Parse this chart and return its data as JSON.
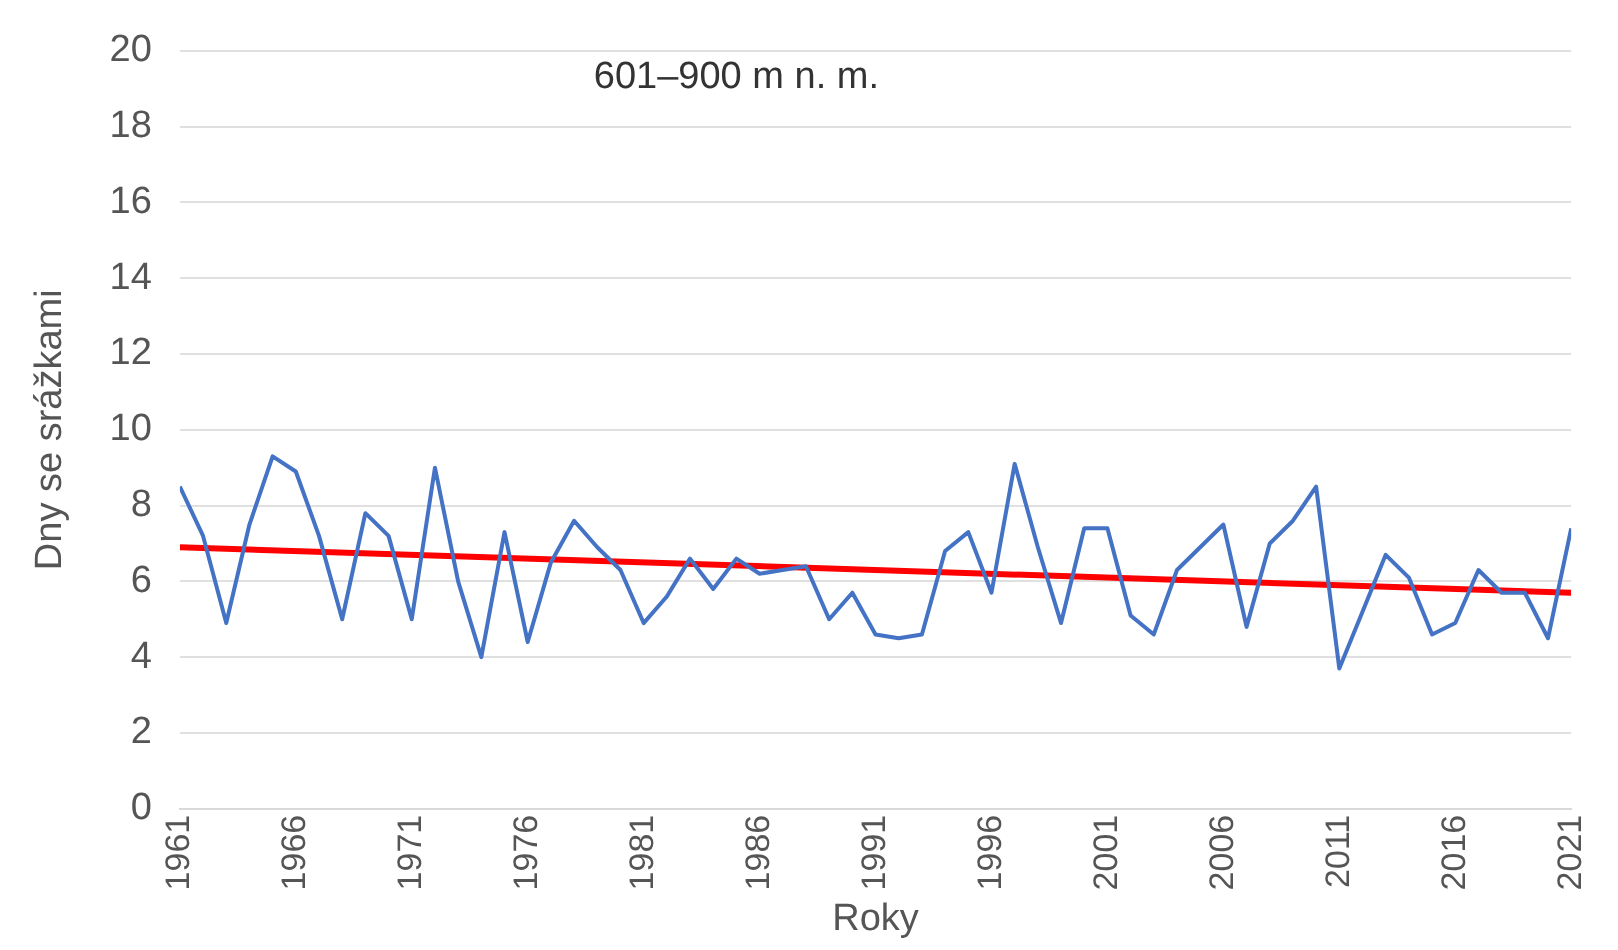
{
  "chart_data": {
    "type": "line",
    "xlabel": "Roky",
    "ylabel": "Dny se srážkami",
    "annotations": [
      "601–900 m n. m."
    ],
    "x": [
      1961,
      1962,
      1963,
      1964,
      1965,
      1966,
      1967,
      1968,
      1969,
      1970,
      1971,
      1972,
      1973,
      1974,
      1975,
      1976,
      1977,
      1978,
      1979,
      1980,
      1981,
      1982,
      1983,
      1984,
      1985,
      1986,
      1987,
      1988,
      1989,
      1990,
      1991,
      1992,
      1993,
      1994,
      1995,
      1996,
      1997,
      1998,
      1999,
      2000,
      2001,
      2002,
      2003,
      2004,
      2005,
      2006,
      2007,
      2008,
      2009,
      2010,
      2011,
      2012,
      2013,
      2014,
      2015,
      2016,
      2017,
      2018,
      2019,
      2020,
      2021
    ],
    "series": [
      {
        "color": "#4472c4",
        "values": [
          8.5,
          7.2,
          4.9,
          7.5,
          9.3,
          8.9,
          7.2,
          5.0,
          7.8,
          7.2,
          5.0,
          9.0,
          6.0,
          4.0,
          7.3,
          4.4,
          6.5,
          7.6,
          6.9,
          6.3,
          4.9,
          5.6,
          6.6,
          5.8,
          6.6,
          6.2,
          6.3,
          6.4,
          5.0,
          5.7,
          4.6,
          4.5,
          4.6,
          6.8,
          7.3,
          5.7,
          9.1,
          6.9,
          4.9,
          7.4,
          7.4,
          5.1,
          4.6,
          6.3,
          6.9,
          7.5,
          4.8,
          7.0,
          7.6,
          8.5,
          3.7,
          5.2,
          6.7,
          6.1,
          4.6,
          4.9,
          6.3,
          5.7,
          5.7,
          4.5,
          7.4
        ]
      },
      {
        "type": "line",
        "color": "#ff0000",
        "x": [
          1961,
          2021
        ],
        "values": [
          6.9,
          5.7
        ]
      }
    ],
    "xlim": [
      1961,
      2021
    ],
    "xticks": [
      1961,
      1966,
      1971,
      1976,
      1981,
      1986,
      1991,
      1996,
      2001,
      2006,
      2011,
      2016,
      2021
    ],
    "ylim": [
      0,
      20
    ],
    "yticks": [
      0,
      2,
      4,
      6,
      8,
      10,
      12,
      14,
      16,
      18,
      20
    ],
    "grid": "y",
    "legend": false,
    "marker": "none",
    "line_style": "solid"
  }
}
